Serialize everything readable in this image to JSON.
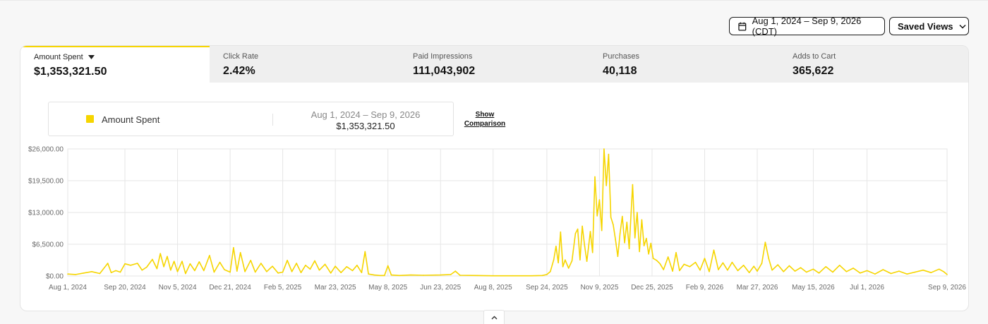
{
  "toolbar": {
    "date_range_label": "Aug 1, 2024 – Sep 9, 2026 (CDT)",
    "saved_views_label": "Saved Views"
  },
  "metrics": [
    {
      "label": "Amount Spent",
      "value": "$1,353,321.50",
      "active": true
    },
    {
      "label": "Click Rate",
      "value": "2.42%",
      "active": false
    },
    {
      "label": "Paid Impressions",
      "value": "111,043,902",
      "active": false
    },
    {
      "label": "Purchases",
      "value": "40,118",
      "active": false
    },
    {
      "label": "Adds to Cart",
      "value": "365,622",
      "active": false
    }
  ],
  "legend": {
    "series_name": "Amount Spent",
    "range": "Aug 1, 2024 – Sep 9, 2026",
    "total": "$1,353,321.50",
    "show_comparison_line1": "Show",
    "show_comparison_line2": "Comparison"
  },
  "colors": {
    "accent": "#f6d500",
    "grid": "#e6e6e6",
    "axis_text": "#6a6a6a"
  },
  "icons": {
    "date_button": "calendar-icon",
    "saved_views": "chevron-down-icon",
    "metric_caret": "caret-down-icon",
    "collapse": "chevron-up-icon"
  },
  "chart_data": {
    "type": "line",
    "series": [
      {
        "name": "Amount Spent"
      }
    ],
    "y_ticks": [
      "$0.00",
      "$6,500.00",
      "$13,000.00",
      "$19,500.00",
      "$26,000.00"
    ],
    "ylim": [
      0,
      26000
    ],
    "x_ticks": [
      "Aug 1, 2024",
      "Sep 20, 2024",
      "Nov 5, 2024",
      "Dec 21, 2024",
      "Feb 5, 2025",
      "Mar 23, 2025",
      "May 8, 2025",
      "Jun 23, 2025",
      "Aug 8, 2025",
      "Sep 24, 2025",
      "Nov 9, 2025",
      "Dec 25, 2025",
      "Feb 9, 2026",
      "Mar 27, 2026",
      "May 15, 2026",
      "Jul 1, 2026",
      "Sep 9, 2026"
    ],
    "grid": true,
    "points": [
      [
        "Aug 1, 2024",
        400
      ],
      [
        "Aug 8, 2024",
        300
      ],
      [
        "Aug 15, 2024",
        600
      ],
      [
        "Aug 22, 2024",
        900
      ],
      [
        "Aug 29, 2024",
        500
      ],
      [
        "Sep 5, 2024",
        2600
      ],
      [
        "Sep 8, 2024",
        700
      ],
      [
        "Sep 12, 2024",
        1100
      ],
      [
        "Sep 16, 2024",
        800
      ],
      [
        "Sep 20, 2024",
        2500
      ],
      [
        "Sep 25, 2024",
        2200
      ],
      [
        "Oct 1, 2024",
        2600
      ],
      [
        "Oct 5, 2024",
        1200
      ],
      [
        "Oct 9, 2024",
        1800
      ],
      [
        "Oct 14, 2024",
        3400
      ],
      [
        "Oct 18, 2024",
        1500
      ],
      [
        "Oct 21, 2024",
        4600
      ],
      [
        "Oct 24, 2024",
        1900
      ],
      [
        "Oct 27, 2024",
        4000
      ],
      [
        "Oct 30, 2024",
        1200
      ],
      [
        "Nov 2, 2024",
        3000
      ],
      [
        "Nov 5, 2024",
        900
      ],
      [
        "Nov 9, 2024",
        3000
      ],
      [
        "Nov 12, 2024",
        500
      ],
      [
        "Nov 16, 2024",
        2500
      ],
      [
        "Nov 20, 2024",
        1100
      ],
      [
        "Nov 24, 2024",
        2900
      ],
      [
        "Nov 28, 2024",
        1100
      ],
      [
        "Dec 3, 2024",
        4200
      ],
      [
        "Dec 7, 2024",
        800
      ],
      [
        "Dec 12, 2024",
        2800
      ],
      [
        "Dec 16, 2024",
        1300
      ],
      [
        "Dec 21, 2024",
        800
      ],
      [
        "Dec 24, 2024",
        5800
      ],
      [
        "Dec 27, 2024",
        1000
      ],
      [
        "Dec 30, 2024",
        4800
      ],
      [
        "Jan 3, 2025",
        900
      ],
      [
        "Jan 8, 2025",
        3200
      ],
      [
        "Jan 12, 2025",
        800
      ],
      [
        "Jan 17, 2025",
        2600
      ],
      [
        "Jan 22, 2025",
        900
      ],
      [
        "Jan 27, 2025",
        2000
      ],
      [
        "Feb 1, 2025",
        600
      ],
      [
        "Feb 5, 2025",
        800
      ],
      [
        "Feb 9, 2025",
        3200
      ],
      [
        "Feb 13, 2025",
        900
      ],
      [
        "Feb 17, 2025",
        2600
      ],
      [
        "Feb 21, 2025",
        700
      ],
      [
        "Feb 25, 2025",
        2200
      ],
      [
        "Mar 1, 2025",
        1400
      ],
      [
        "Mar 5, 2025",
        3100
      ],
      [
        "Mar 9, 2025",
        1200
      ],
      [
        "Mar 14, 2025",
        2400
      ],
      [
        "Mar 19, 2025",
        600
      ],
      [
        "Mar 23, 2025",
        2000
      ],
      [
        "Mar 28, 2025",
        700
      ],
      [
        "Apr 2, 2025",
        1900
      ],
      [
        "Apr 7, 2025",
        1100
      ],
      [
        "Apr 11, 2025",
        2200
      ],
      [
        "Apr 15, 2025",
        700
      ],
      [
        "Apr 18, 2025",
        5000
      ],
      [
        "Apr 21, 2025",
        400
      ],
      [
        "Apr 26, 2025",
        200
      ],
      [
        "May 1, 2025",
        100
      ],
      [
        "May 5, 2025",
        100
      ],
      [
        "May 8, 2025",
        2100
      ],
      [
        "May 11, 2025",
        200
      ],
      [
        "May 18, 2025",
        100
      ],
      [
        "May 28, 2025",
        200
      ],
      [
        "Jun 8, 2025",
        150
      ],
      [
        "Jun 23, 2025",
        200
      ],
      [
        "Jul 2, 2025",
        300
      ],
      [
        "Jul 6, 2025",
        1000
      ],
      [
        "Jul 10, 2025",
        150
      ],
      [
        "Jul 25, 2025",
        100
      ],
      [
        "Aug 8, 2025",
        50
      ],
      [
        "Aug 25, 2025",
        50
      ],
      [
        "Sep 10, 2025",
        50
      ],
      [
        "Sep 20, 2025",
        100
      ],
      [
        "Sep 24, 2025",
        300
      ],
      [
        "Sep 27, 2025",
        900
      ],
      [
        "Sep 30, 2025",
        3300
      ],
      [
        "Oct 2, 2025",
        6100
      ],
      [
        "Oct 4, 2025",
        2700
      ],
      [
        "Oct 6, 2025",
        9000
      ],
      [
        "Oct 8, 2025",
        1900
      ],
      [
        "Oct 10, 2025",
        3300
      ],
      [
        "Oct 13, 2025",
        1600
      ],
      [
        "Oct 16, 2025",
        3100
      ],
      [
        "Oct 19, 2025",
        8700
      ],
      [
        "Oct 21, 2025",
        9600
      ],
      [
        "Oct 23, 2025",
        3300
      ],
      [
        "Oct 25, 2025",
        10200
      ],
      [
        "Oct 27, 2025",
        6200
      ],
      [
        "Oct 29, 2025",
        3000
      ],
      [
        "Nov 1, 2025",
        9100
      ],
      [
        "Nov 3, 2025",
        4800
      ],
      [
        "Nov 5, 2025",
        20300
      ],
      [
        "Nov 7, 2025",
        12300
      ],
      [
        "Nov 9, 2025",
        15600
      ],
      [
        "Nov 11, 2025",
        9300
      ],
      [
        "Nov 13, 2025",
        26000
      ],
      [
        "Nov 15, 2025",
        18500
      ],
      [
        "Nov 17, 2025",
        24900
      ],
      [
        "Nov 19, 2025",
        12000
      ],
      [
        "Nov 21, 2025",
        10500
      ],
      [
        "Nov 23, 2025",
        7500
      ],
      [
        "Nov 25, 2025",
        4000
      ],
      [
        "Nov 27, 2025",
        8700
      ],
      [
        "Nov 29, 2025",
        12200
      ],
      [
        "Dec 1, 2025",
        6800
      ],
      [
        "Dec 3, 2025",
        11000
      ],
      [
        "Dec 5, 2025",
        5600
      ],
      [
        "Dec 8, 2025",
        18700
      ],
      [
        "Dec 10, 2025",
        7800
      ],
      [
        "Dec 12, 2025",
        13000
      ],
      [
        "Dec 14, 2025",
        5000
      ],
      [
        "Dec 16, 2025",
        11500
      ],
      [
        "Dec 18, 2025",
        6200
      ],
      [
        "Dec 20, 2025",
        7700
      ],
      [
        "Dec 22, 2025",
        4500
      ],
      [
        "Dec 24, 2025",
        6700
      ],
      [
        "Dec 26, 2025",
        3600
      ],
      [
        "Dec 29, 2025",
        3200
      ],
      [
        "Jan 1, 2026",
        2500
      ],
      [
        "Jan 4, 2026",
        1300
      ],
      [
        "Jan 8, 2026",
        3900
      ],
      [
        "Jan 12, 2026",
        1000
      ],
      [
        "Jan 15, 2026",
        4800
      ],
      [
        "Jan 18, 2026",
        1100
      ],
      [
        "Jan 22, 2026",
        2400
      ],
      [
        "Jan 27, 2026",
        1900
      ],
      [
        "Feb 1, 2026",
        2800
      ],
      [
        "Feb 5, 2026",
        1200
      ],
      [
        "Feb 9, 2026",
        3600
      ],
      [
        "Feb 13, 2026",
        900
      ],
      [
        "Feb 17, 2026",
        5300
      ],
      [
        "Feb 21, 2026",
        1300
      ],
      [
        "Feb 25, 2026",
        2700
      ],
      [
        "Mar 1, 2026",
        1200
      ],
      [
        "Mar 5, 2026",
        2800
      ],
      [
        "Mar 10, 2026",
        1100
      ],
      [
        "Mar 15, 2026",
        2200
      ],
      [
        "Mar 20, 2026",
        700
      ],
      [
        "Mar 24, 2026",
        2000
      ],
      [
        "Mar 27, 2026",
        1000
      ],
      [
        "Mar 31, 2026",
        2600
      ],
      [
        "Apr 3, 2026",
        6900
      ],
      [
        "Apr 6, 2026",
        3600
      ],
      [
        "Apr 9, 2026",
        1200
      ],
      [
        "Apr 14, 2026",
        2300
      ],
      [
        "Apr 19, 2026",
        900
      ],
      [
        "Apr 24, 2026",
        2100
      ],
      [
        "Apr 29, 2026",
        1000
      ],
      [
        "May 4, 2026",
        1700
      ],
      [
        "May 9, 2026",
        800
      ],
      [
        "May 15, 2026",
        1400
      ],
      [
        "May 20, 2026",
        600
      ],
      [
        "May 26, 2026",
        1900
      ],
      [
        "Jun 1, 2026",
        800
      ],
      [
        "Jun 7, 2026",
        2200
      ],
      [
        "Jun 13, 2026",
        900
      ],
      [
        "Jun 19, 2026",
        1600
      ],
      [
        "Jun 25, 2026",
        600
      ],
      [
        "Jul 1, 2026",
        1100
      ],
      [
        "Jul 8, 2026",
        400
      ],
      [
        "Jul 15, 2026",
        1300
      ],
      [
        "Jul 22, 2026",
        500
      ],
      [
        "Jul 29, 2026",
        1000
      ],
      [
        "Aug 5, 2026",
        400
      ],
      [
        "Aug 12, 2026",
        800
      ],
      [
        "Aug 19, 2026",
        1200
      ],
      [
        "Aug 26, 2026",
        700
      ],
      [
        "Sep 2, 2026",
        1400
      ],
      [
        "Sep 6, 2026",
        900
      ],
      [
        "Sep 9, 2026",
        300
      ]
    ]
  }
}
